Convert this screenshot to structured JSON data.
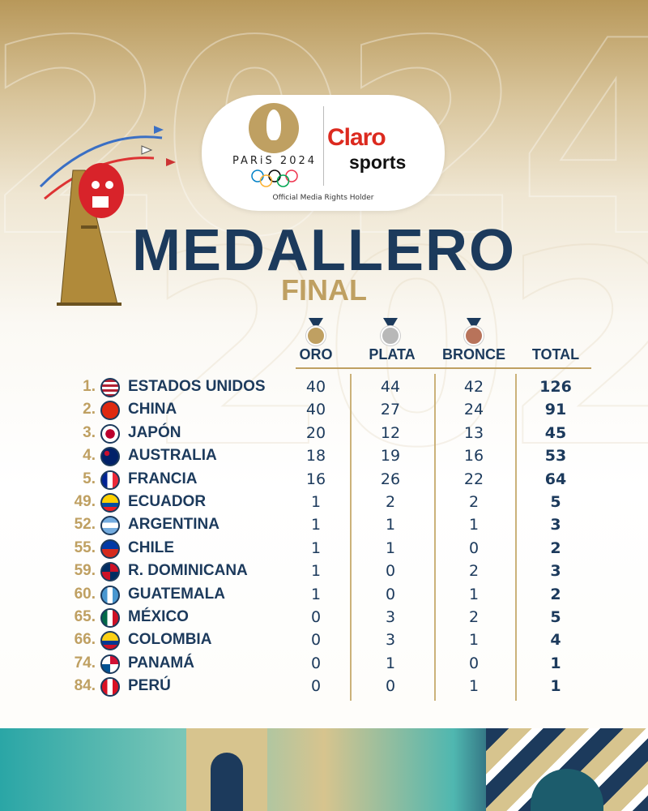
{
  "logo": {
    "event": "PARiS 2024",
    "partner_top": "Claro",
    "partner_bottom": "sports",
    "tagline": "Official Media Rights Holder"
  },
  "title": "MEDALLERO",
  "subtitle": "FINAL",
  "columns": {
    "gold": "ORO",
    "silver": "PLATA",
    "bronze": "BRONCE",
    "total": "TOTAL"
  },
  "colors": {
    "navy": "#1c3a5c",
    "gold": "#bfa062",
    "silver": "#b8b8b8",
    "bronze": "#b8735a"
  },
  "rows": [
    {
      "rank": "1.",
      "country": "ESTADOS UNIDOS",
      "oro": "40",
      "plata": "44",
      "bronce": "42",
      "total": "126"
    },
    {
      "rank": "2.",
      "country": "CHINA",
      "oro": "40",
      "plata": "27",
      "bronce": "24",
      "total": "91"
    },
    {
      "rank": "3.",
      "country": "JAPÓN",
      "oro": "20",
      "plata": "12",
      "bronce": "13",
      "total": "45"
    },
    {
      "rank": "4.",
      "country": "AUSTRALIA",
      "oro": "18",
      "plata": "19",
      "bronce": "16",
      "total": "53"
    },
    {
      "rank": "5.",
      "country": "FRANCIA",
      "oro": "16",
      "plata": "26",
      "bronce": "22",
      "total": "64"
    },
    {
      "rank": "49.",
      "country": "ECUADOR",
      "oro": "1",
      "plata": "2",
      "bronce": "2",
      "total": "5"
    },
    {
      "rank": "52.",
      "country": "ARGENTINA",
      "oro": "1",
      "plata": "1",
      "bronce": "1",
      "total": "3"
    },
    {
      "rank": "55.",
      "country": "CHILE",
      "oro": "1",
      "plata": "1",
      "bronce": "0",
      "total": "2"
    },
    {
      "rank": "59.",
      "country": "R. DOMINICANA",
      "oro": "1",
      "plata": "0",
      "bronce": "2",
      "total": "3"
    },
    {
      "rank": "60.",
      "country": "GUATEMALA",
      "oro": "1",
      "plata": "0",
      "bronce": "1",
      "total": "2"
    },
    {
      "rank": "65.",
      "country": "MÉXICO",
      "oro": "0",
      "plata": "3",
      "bronce": "2",
      "total": "5"
    },
    {
      "rank": "66.",
      "country": "COLOMBIA",
      "oro": "0",
      "plata": "3",
      "bronce": "1",
      "total": "4"
    },
    {
      "rank": "74.",
      "country": "PANAMÁ",
      "oro": "0",
      "plata": "1",
      "bronce": "0",
      "total": "1"
    },
    {
      "rank": "84.",
      "country": "PERÚ",
      "oro": "0",
      "plata": "0",
      "bronce": "1",
      "total": "1"
    }
  ]
}
